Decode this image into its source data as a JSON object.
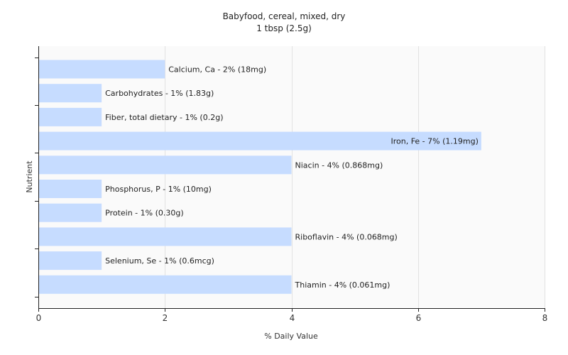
{
  "chart_data": {
    "type": "bar",
    "orientation": "horizontal",
    "title": "Babyfood, cereal, mixed, dry",
    "subtitle": "1 tbsp (2.5g)",
    "xlabel": "% Daily Value",
    "ylabel": "Nutrient",
    "xlim": [
      0,
      8
    ],
    "xticks": [
      0,
      2,
      4,
      6,
      8
    ],
    "grid": true,
    "bar_color": "#c6dcff",
    "categories": [
      "Calcium, Ca",
      "Carbohydrates",
      "Fiber, total dietary",
      "Iron, Fe",
      "Niacin",
      "Phosphorus, P",
      "Protein",
      "Riboflavin",
      "Selenium, Se",
      "Thiamin"
    ],
    "values": [
      2,
      1,
      1,
      7,
      4,
      1,
      1,
      4,
      1,
      4
    ],
    "labels": [
      "Calcium, Ca - 2% (18mg)",
      "Carbohydrates - 1% (1.83g)",
      "Fiber, total dietary - 1% (0.2g)",
      "Iron, Fe - 7% (1.19mg)",
      "Niacin - 4% (0.868mg)",
      "Phosphorus, P - 1% (10mg)",
      "Protein - 1% (0.30g)",
      "Riboflavin - 4% (0.068mg)",
      "Selenium, Se - 1% (0.6mcg)",
      "Thiamin - 4% (0.061mg)"
    ]
  }
}
